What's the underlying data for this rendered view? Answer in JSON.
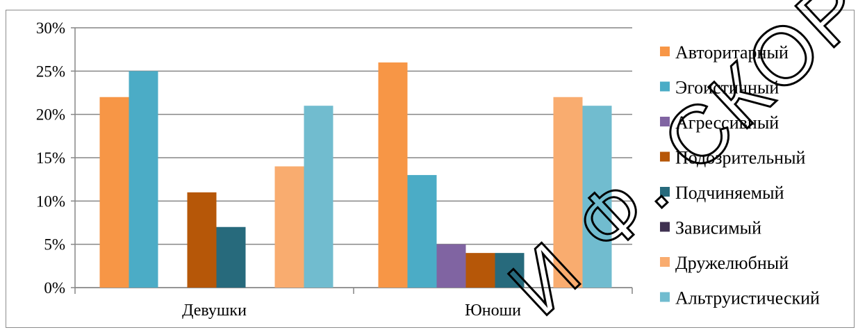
{
  "chart_data": {
    "type": "bar",
    "categories": [
      "Девушки",
      "Юноши"
    ],
    "series": [
      {
        "name": "Авторитарный",
        "values": [
          22,
          26
        ],
        "color": "#f79646"
      },
      {
        "name": "Эгоистичный",
        "values": [
          25,
          13
        ],
        "color": "#4bacc6"
      },
      {
        "name": "Агрессивный",
        "values": [
          0,
          5
        ],
        "color": "#8064a2"
      },
      {
        "name": "Подозрительный",
        "values": [
          11,
          4
        ],
        "color": "#b65708"
      },
      {
        "name": "Подчиняемый",
        "values": [
          7,
          4
        ],
        "color": "#276a7c"
      },
      {
        "name": "Зависимый",
        "values": [
          0,
          0
        ],
        "color": "#3f3151"
      },
      {
        "name": "Дружелюбный",
        "values": [
          14,
          22
        ],
        "color": "#f9ac6f"
      },
      {
        "name": "Альтруистический",
        "values": [
          21,
          21
        ],
        "color": "#71bccf"
      }
    ],
    "y_ticks": [
      "0%",
      "5%",
      "10%",
      "15%",
      "20%",
      "25%",
      "30%"
    ],
    "ylim": [
      0,
      30
    ],
    "y_unit": "%",
    "grid": true,
    "legend": "right",
    "title": "",
    "xlabel": "",
    "ylabel": ""
  },
  "watermark": {
    "text": "И Ф. СКОРИНЫ",
    "color": "#000000"
  }
}
